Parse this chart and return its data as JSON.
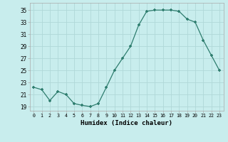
{
  "x": [
    0,
    1,
    2,
    3,
    4,
    5,
    6,
    7,
    8,
    9,
    10,
    11,
    12,
    13,
    14,
    15,
    16,
    17,
    18,
    19,
    20,
    21,
    22,
    23
  ],
  "y": [
    22.2,
    21.8,
    20.0,
    21.5,
    21.0,
    19.5,
    19.2,
    19.0,
    19.5,
    22.2,
    25.0,
    27.0,
    29.0,
    32.5,
    34.8,
    35.0,
    35.0,
    35.0,
    34.8,
    33.5,
    33.0,
    30.0,
    27.5,
    25.0
  ],
  "line_color": "#2e7d6e",
  "marker_color": "#2e7d6e",
  "bg_color": "#c8eded",
  "grid_color": "#b0d8d8",
  "xlabel": "Humidex (Indice chaleur)",
  "ytick_labels": [
    "19",
    "21",
    "23",
    "25",
    "27",
    "29",
    "31",
    "33",
    "35"
  ],
  "ytick_vals": [
    19,
    21,
    23,
    25,
    27,
    29,
    31,
    33,
    35
  ],
  "xtick_vals": [
    0,
    1,
    2,
    3,
    4,
    5,
    6,
    7,
    8,
    9,
    10,
    11,
    12,
    13,
    14,
    15,
    16,
    17,
    18,
    19,
    20,
    21,
    22,
    23
  ],
  "ylim": [
    18.3,
    36.2
  ],
  "xlim": [
    -0.5,
    23.5
  ]
}
